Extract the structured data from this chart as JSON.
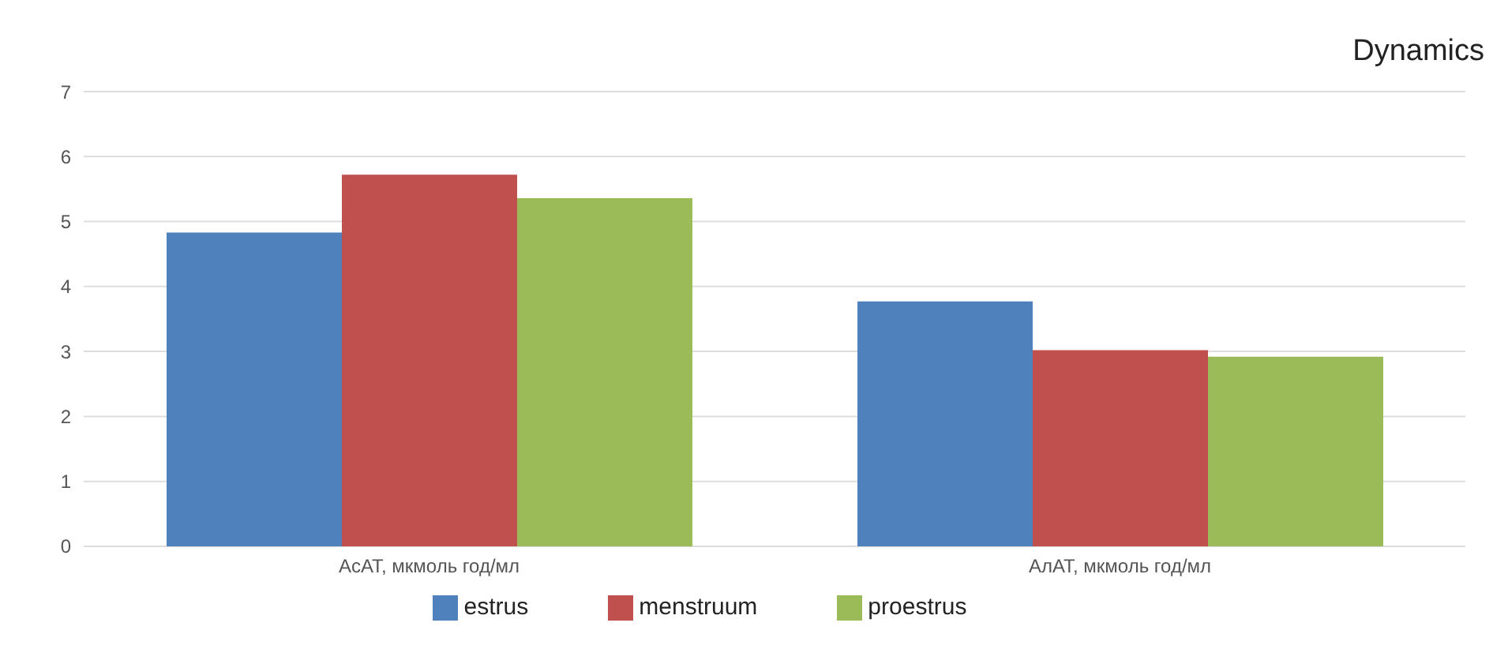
{
  "chart_data": {
    "type": "bar",
    "title": "Dynamics",
    "categories": [
      "АсАТ, мкмоль год/мл",
      "АлАТ, мкмоль год/мл"
    ],
    "series": [
      {
        "name": "estrus",
        "color": "#4f81bd",
        "values": [
          4.83,
          3.77
        ]
      },
      {
        "name": "menstruum",
        "color": "#c0504d",
        "values": [
          5.72,
          3.02
        ]
      },
      {
        "name": "proestrus",
        "color": "#9bbb59",
        "values": [
          5.36,
          2.92
        ]
      }
    ],
    "ylim": [
      0,
      7
    ],
    "yticks": [
      0,
      1,
      2,
      3,
      4,
      5,
      6,
      7
    ],
    "grid": "y",
    "legend": "bottom"
  }
}
